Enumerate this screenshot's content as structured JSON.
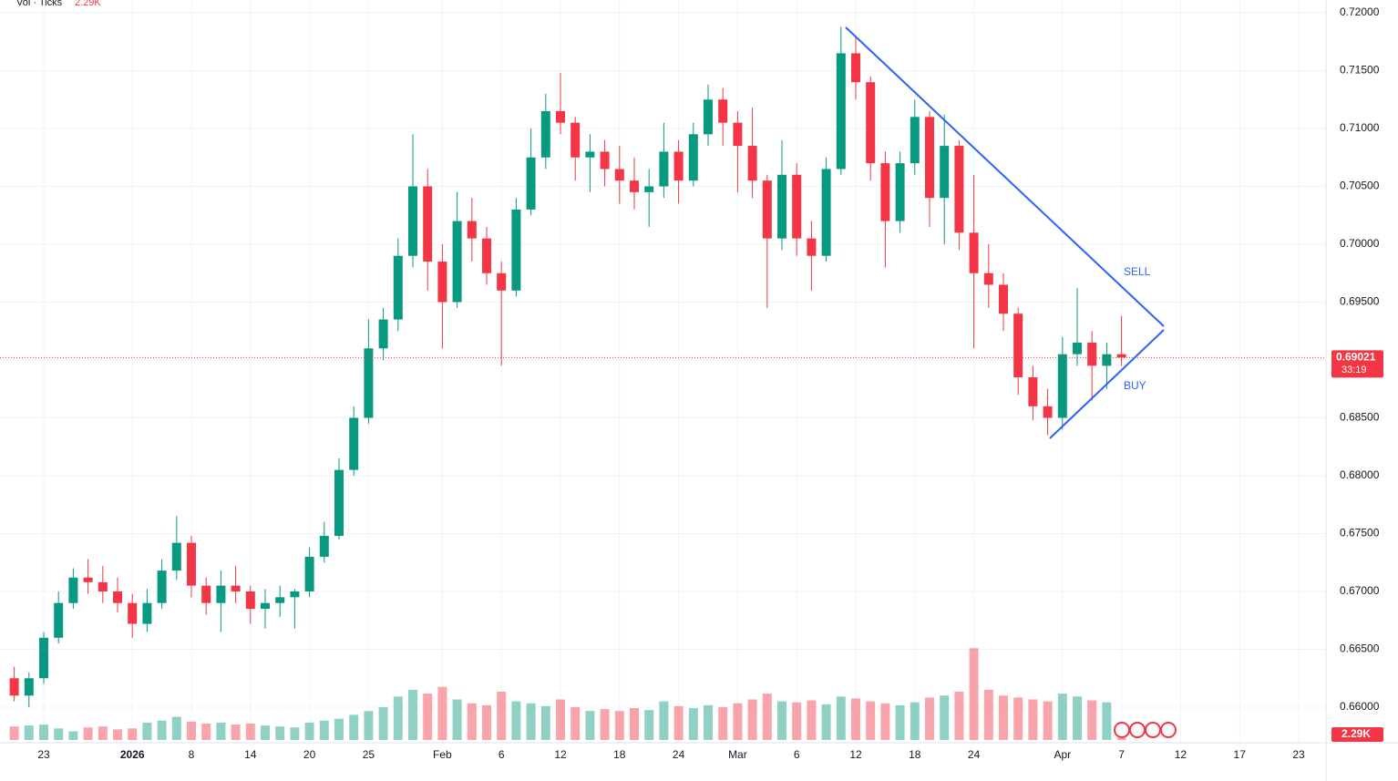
{
  "chart_data": {
    "type": "candlestick",
    "volume_title": "Vol · Ticks",
    "countdown": "33:19",
    "annotations": [
      "SELL",
      "BUY"
    ],
    "up_color": "#089981",
    "down_color": "#f23645",
    "grid": true,
    "categories": [
      null,
      null,
      "23",
      null,
      null,
      null,
      null,
      null,
      "2026",
      null,
      null,
      null,
      "8",
      null,
      null,
      null,
      "14",
      null,
      null,
      null,
      "20",
      null,
      null,
      null,
      "25",
      null,
      null,
      null,
      null,
      "Feb",
      null,
      null,
      null,
      "6",
      null,
      null,
      null,
      "12",
      null,
      null,
      null,
      "18",
      null,
      null,
      null,
      "24",
      null,
      null,
      null,
      "Mar",
      null,
      null,
      null,
      "6",
      null,
      null,
      null,
      "12",
      null,
      null,
      null,
      "18",
      null,
      null,
      null,
      "24",
      null,
      null,
      null,
      null,
      null,
      "Apr",
      null,
      null,
      null,
      "7",
      null,
      null,
      null,
      "12",
      null,
      null,
      null,
      "17",
      null,
      null,
      null,
      "23",
      null
    ],
    "open": [
      0.6625,
      0.661,
      0.6625,
      0.666,
      0.669,
      0.6712,
      0.6708,
      0.67,
      0.669,
      0.6672,
      0.669,
      0.6718,
      0.6742,
      0.6705,
      0.669,
      0.6705,
      0.67,
      0.6685,
      0.669,
      0.6695,
      0.67,
      0.673,
      0.6748,
      0.6805,
      0.685,
      0.691,
      0.6935,
      0.699,
      0.705,
      0.6985,
      0.695,
      0.702,
      0.7005,
      0.6975,
      0.696,
      0.703,
      0.7075,
      0.7115,
      0.7105,
      0.7075,
      0.708,
      0.7065,
      0.7055,
      0.7045,
      0.705,
      0.708,
      0.7055,
      0.7095,
      0.7125,
      0.7105,
      0.7085,
      0.7055,
      0.7005,
      0.706,
      0.7005,
      0.699,
      0.7065,
      0.7165,
      0.714,
      0.707,
      0.702,
      0.707,
      0.711,
      0.704,
      0.7085,
      0.701,
      0.6975,
      0.6965,
      0.694,
      0.6885,
      0.686,
      0.685,
      0.6905,
      0.6915,
      0.6895,
      0.6905,
      null,
      null,
      null,
      null,
      null,
      null,
      null,
      null,
      null,
      null,
      null,
      null,
      null
    ],
    "high": [
      0.6635,
      0.663,
      0.6665,
      0.67,
      0.672,
      0.6728,
      0.6722,
      0.6712,
      0.6698,
      0.6702,
      0.6728,
      0.6765,
      0.6748,
      0.6712,
      0.6718,
      0.6722,
      0.6705,
      0.6702,
      0.6705,
      0.6702,
      0.6738,
      0.676,
      0.6815,
      0.686,
      0.6935,
      0.6945,
      0.7005,
      0.7095,
      0.7065,
      0.7,
      0.7045,
      0.704,
      0.7015,
      0.6985,
      0.704,
      0.71,
      0.713,
      0.7148,
      0.711,
      0.7095,
      0.709,
      0.7085,
      0.7075,
      0.7065,
      0.7105,
      0.709,
      0.7105,
      0.7138,
      0.7135,
      0.7115,
      0.7118,
      0.706,
      0.709,
      0.707,
      0.702,
      0.7075,
      0.7188,
      0.718,
      0.7145,
      0.708,
      0.708,
      0.7125,
      0.7115,
      0.7112,
      0.709,
      0.706,
      0.7,
      0.6975,
      0.6945,
      0.6895,
      0.6875,
      0.692,
      0.6962,
      0.6925,
      0.6915,
      0.6938,
      null,
      null,
      null,
      null,
      null,
      null,
      null,
      null,
      null,
      null,
      null,
      null,
      null
    ],
    "low": [
      0.6605,
      0.66,
      0.662,
      0.6655,
      0.6685,
      0.6698,
      0.669,
      0.6682,
      0.666,
      0.6665,
      0.6685,
      0.671,
      0.6695,
      0.668,
      0.6665,
      0.669,
      0.6672,
      0.6668,
      0.6678,
      0.6668,
      0.6695,
      0.6725,
      0.6745,
      0.68,
      0.6845,
      0.69,
      0.6925,
      0.698,
      0.696,
      0.691,
      0.6945,
      0.6985,
      0.6965,
      0.6895,
      0.6955,
      0.7025,
      0.7065,
      0.7095,
      0.7055,
      0.7045,
      0.705,
      0.7035,
      0.703,
      0.7015,
      0.704,
      0.7035,
      0.705,
      0.7085,
      0.7085,
      0.7045,
      0.704,
      0.6945,
      0.6995,
      0.699,
      0.696,
      0.6985,
      0.706,
      0.7125,
      0.7055,
      0.698,
      0.701,
      0.706,
      0.7015,
      0.7,
      0.6995,
      0.691,
      0.6945,
      0.6925,
      0.687,
      0.6848,
      0.6835,
      0.684,
      0.6895,
      0.6865,
      0.6875,
      0.6895,
      null,
      null,
      null,
      null,
      null,
      null,
      null,
      null,
      null,
      null,
      null,
      null,
      null
    ],
    "close": [
      0.661,
      0.6625,
      0.666,
      0.669,
      0.6712,
      0.6708,
      0.67,
      0.669,
      0.6672,
      0.669,
      0.6718,
      0.6742,
      0.6705,
      0.669,
      0.6705,
      0.67,
      0.6685,
      0.669,
      0.6695,
      0.67,
      0.673,
      0.6748,
      0.6805,
      0.685,
      0.691,
      0.6935,
      0.699,
      0.705,
      0.6985,
      0.695,
      0.702,
      0.7005,
      0.6975,
      0.696,
      0.703,
      0.7075,
      0.7115,
      0.7105,
      0.7075,
      0.708,
      0.7065,
      0.7055,
      0.7045,
      0.705,
      0.708,
      0.7055,
      0.7095,
      0.7125,
      0.7105,
      0.7085,
      0.7055,
      0.7005,
      0.706,
      0.7005,
      0.699,
      0.7065,
      0.7165,
      0.714,
      0.707,
      0.702,
      0.707,
      0.711,
      0.704,
      0.7085,
      0.701,
      0.6975,
      0.6965,
      0.694,
      0.6885,
      0.686,
      0.685,
      0.6905,
      0.6915,
      0.6895,
      0.6905,
      0.69021,
      null,
      null,
      null,
      null,
      null,
      null,
      null,
      null,
      null,
      null,
      null,
      null,
      null
    ],
    "volume": {
      "values": [
        14000,
        15000,
        16000,
        12000,
        9000,
        13000,
        14000,
        11000,
        12000,
        18000,
        20000,
        24000,
        19000,
        17000,
        18000,
        16000,
        17000,
        15000,
        14000,
        13000,
        18000,
        20000,
        22000,
        26000,
        30000,
        34000,
        45000,
        52000,
        48000,
        55000,
        42000,
        38000,
        36000,
        50000,
        40000,
        38000,
        35000,
        42000,
        34000,
        30000,
        32000,
        30000,
        33000,
        31000,
        40000,
        35000,
        33000,
        36000,
        34000,
        38000,
        42000,
        48000,
        40000,
        39000,
        41000,
        37000,
        45000,
        43000,
        40000,
        38000,
        36000,
        39000,
        44000,
        46000,
        50000,
        95000,
        52000,
        46000,
        44000,
        42000,
        40000,
        48000,
        45000,
        41000,
        39000,
        2290,
        null,
        null,
        null,
        null,
        null,
        null,
        null,
        null,
        null,
        null,
        null,
        null,
        null
      ],
      "value_labels": [
        null,
        null,
        null,
        null,
        null,
        null,
        null,
        null,
        null,
        null,
        null,
        null,
        null,
        null,
        null,
        null,
        null,
        null,
        null,
        null,
        null,
        null,
        null,
        null,
        null,
        null,
        null,
        null,
        null,
        null,
        null,
        null,
        null,
        null,
        null,
        null,
        null,
        null,
        null,
        null,
        null,
        null,
        null,
        null,
        null,
        null,
        null,
        null,
        null,
        null,
        null,
        null,
        null,
        null,
        null,
        null,
        null,
        null,
        null,
        null,
        null,
        null,
        null,
        null,
        null,
        null,
        null,
        null,
        null,
        null,
        null,
        null,
        null,
        null,
        null,
        "2.29K",
        null,
        null,
        null,
        null,
        null,
        null,
        null,
        null,
        null,
        null,
        null,
        null,
        null
      ],
      "ylim": [
        0,
        200000
      ]
    },
    "ylim": [
      0.66,
      0.72
    ],
    "yticks": [
      {
        "value": 0.66,
        "label": "0.66000"
      },
      {
        "value": 0.665,
        "label": "0.66500"
      },
      {
        "value": 0.67,
        "label": "0.67000"
      },
      {
        "value": 0.675,
        "label": "0.67500"
      },
      {
        "value": 0.68,
        "label": "0.68000"
      },
      {
        "value": 0.685,
        "label": "0.68500"
      },
      {
        "value": 0.69,
        "label": "0.69000"
      },
      {
        "value": 0.695,
        "label": "0.69500"
      },
      {
        "value": 0.7,
        "label": "0.70000"
      },
      {
        "value": 0.705,
        "label": "0.70500"
      },
      {
        "value": 0.71,
        "label": "0.71000"
      },
      {
        "value": 0.715,
        "label": "0.71500"
      },
      {
        "value": 0.72,
        "label": "0.72000"
      }
    ]
  }
}
